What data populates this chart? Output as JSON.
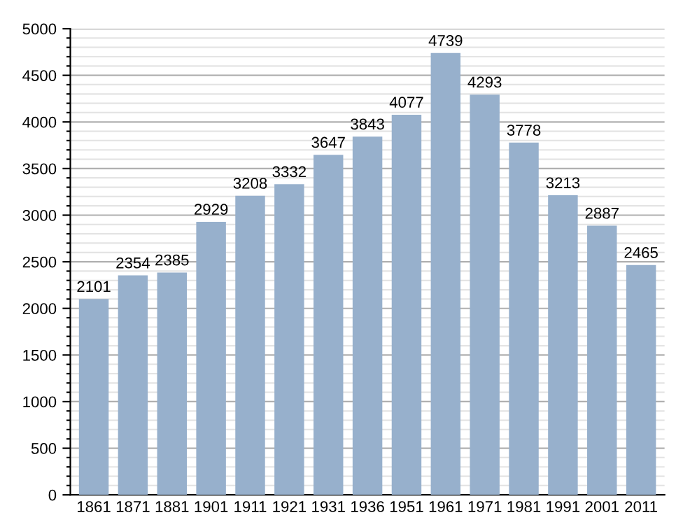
{
  "chart_data": {
    "type": "bar",
    "categories": [
      "1861",
      "1871",
      "1881",
      "1901",
      "1911",
      "1921",
      "1931",
      "1936",
      "1951",
      "1961",
      "1971",
      "1981",
      "1991",
      "2001",
      "2011"
    ],
    "values": [
      2101,
      2354,
      2385,
      2929,
      3208,
      3332,
      3647,
      3843,
      4077,
      4739,
      4293,
      3778,
      3213,
      2887,
      2465
    ],
    "color": "#97b0cc",
    "data_labels": true,
    "ylim": [
      0,
      5000
    ],
    "yticks": [
      0,
      {
        "value": 100,
        "label": null
      },
      {
        "value": 200,
        "label": null
      },
      {
        "value": 300,
        "label": null
      },
      {
        "value": 400,
        "label": null
      },
      500,
      {
        "value": 600,
        "label": null
      },
      {
        "value": 700,
        "label": null
      },
      {
        "value": 800,
        "label": null
      },
      {
        "value": 900,
        "label": null
      },
      1000,
      {
        "value": 1100,
        "label": null
      },
      {
        "value": 1200,
        "label": null
      },
      {
        "value": 1300,
        "label": null
      },
      {
        "value": 1400,
        "label": null
      },
      1500,
      {
        "value": 1600,
        "label": null
      },
      {
        "value": 1700,
        "label": null
      },
      {
        "value": 1800,
        "label": null
      },
      {
        "value": 1900,
        "label": null
      },
      2000,
      {
        "value": 2100,
        "label": null
      },
      {
        "value": 2200,
        "label": null
      },
      {
        "value": 2300,
        "label": null
      },
      {
        "value": 2400,
        "label": null
      },
      2500,
      {
        "value": 2600,
        "label": null
      },
      {
        "value": 2700,
        "label": null
      },
      {
        "value": 2800,
        "label": null
      },
      {
        "value": 2900,
        "label": null
      },
      3000,
      {
        "value": 3100,
        "label": null
      },
      {
        "value": 3200,
        "label": null
      },
      {
        "value": 3300,
        "label": null
      },
      {
        "value": 3400,
        "label": null
      },
      3500,
      {
        "value": 3600,
        "label": null
      },
      {
        "value": 3700,
        "label": null
      },
      {
        "value": 3800,
        "label": null
      },
      {
        "value": 3900,
        "label": null
      },
      4000,
      {
        "value": 4100,
        "label": null
      },
      {
        "value": 4200,
        "label": null
      },
      {
        "value": 4300,
        "label": null
      },
      {
        "value": 4400,
        "label": null
      },
      4500,
      {
        "value": 4600,
        "label": null
      },
      {
        "value": 4700,
        "label": null
      },
      {
        "value": 4800,
        "label": null
      },
      {
        "value": 4900,
        "label": null
      },
      5000
    ],
    "grid": "y"
  }
}
